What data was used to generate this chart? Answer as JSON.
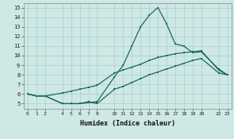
{
  "xlabel": "Humidex (Indice chaleur)",
  "bg_color": "#cde8e5",
  "grid_color": "#aacfcc",
  "line_color": "#1a6b5a",
  "line1_x": [
    0,
    1,
    2,
    4,
    5,
    6,
    7,
    8,
    10,
    11,
    12,
    13,
    14,
    15,
    16,
    17,
    18,
    19,
    20,
    22,
    23
  ],
  "line1_y": [
    6.0,
    5.8,
    5.8,
    5.0,
    5.0,
    5.0,
    5.1,
    5.2,
    7.8,
    9.0,
    11.0,
    13.0,
    14.2,
    15.0,
    13.3,
    11.2,
    11.0,
    10.3,
    10.4,
    8.6,
    8.0
  ],
  "line2_x": [
    0,
    1,
    2,
    4,
    5,
    6,
    7,
    8,
    10,
    11,
    12,
    13,
    14,
    15,
    16,
    17,
    18,
    19,
    20,
    22,
    23
  ],
  "line2_y": [
    6.0,
    5.8,
    5.8,
    6.1,
    6.3,
    6.5,
    6.7,
    6.9,
    8.2,
    8.5,
    8.8,
    9.1,
    9.5,
    9.8,
    10.0,
    10.2,
    10.3,
    10.4,
    10.5,
    8.5,
    8.0
  ],
  "line3_x": [
    0,
    1,
    2,
    4,
    5,
    6,
    7,
    8,
    10,
    11,
    12,
    13,
    14,
    15,
    16,
    17,
    18,
    19,
    20,
    22,
    23
  ],
  "line3_y": [
    6.0,
    5.8,
    5.8,
    5.0,
    5.0,
    5.0,
    5.2,
    5.0,
    6.5,
    6.8,
    7.2,
    7.6,
    8.0,
    8.3,
    8.6,
    8.9,
    9.2,
    9.5,
    9.7,
    8.2,
    8.0
  ],
  "xlim": [
    -0.5,
    23.5
  ],
  "ylim": [
    4.5,
    15.5
  ],
  "yticks": [
    5,
    6,
    7,
    8,
    9,
    10,
    11,
    12,
    13,
    14,
    15
  ],
  "xticks": [
    0,
    1,
    2,
    4,
    5,
    6,
    7,
    8,
    10,
    11,
    12,
    13,
    14,
    15,
    16,
    17,
    18,
    19,
    20,
    22,
    23
  ]
}
